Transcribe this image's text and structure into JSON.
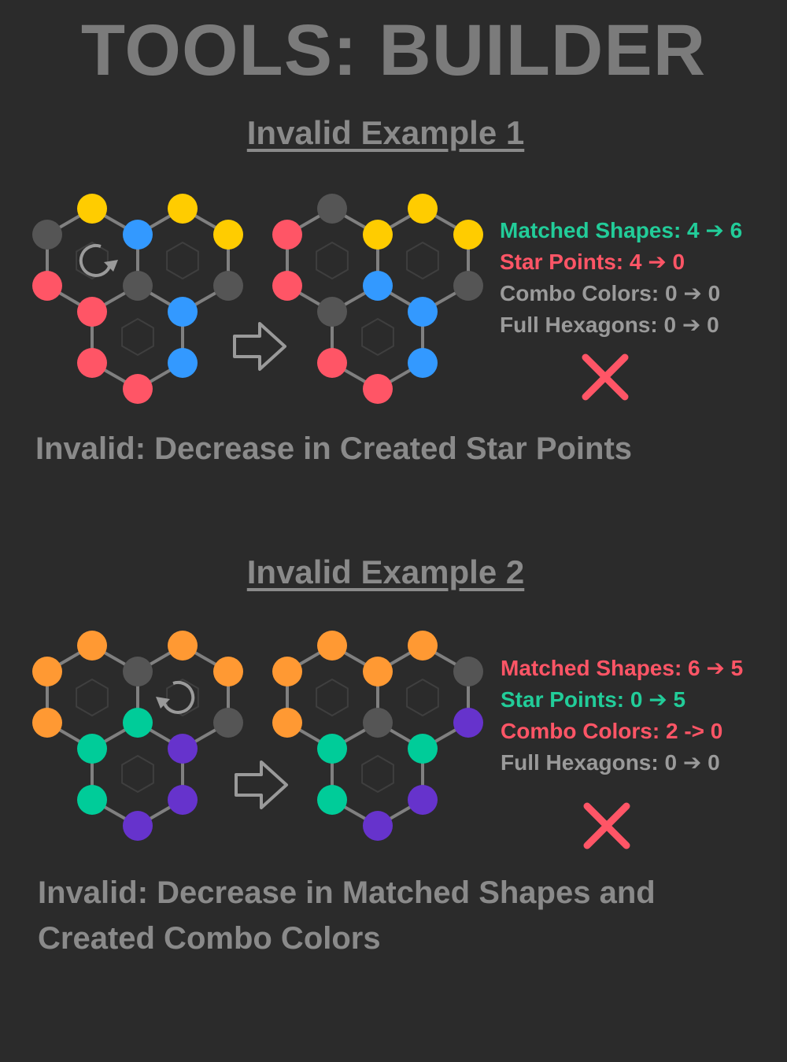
{
  "title": "TOOLS: BUILDER",
  "colors": {
    "background": "#2b2b2b",
    "gray_node": "#555555",
    "yellow": "#ffcc00",
    "blue": "#3399ff",
    "red": "#ff5566",
    "orange": "#ff9933",
    "teal": "#00cc99",
    "purple": "#6633cc",
    "stat_green": "#22cc99",
    "stat_red": "#ff5566",
    "stat_gray": "#9a9a9a"
  },
  "examples": [
    {
      "title": "Invalid Example 1",
      "rotation_icon": "rotate-clockwise-icon",
      "before": [
        "gray",
        "yellow",
        "blue",
        "yellow",
        "yellow",
        "red",
        "gray",
        "gray",
        "red",
        "blue",
        "red",
        "blue",
        "red"
      ],
      "after": [
        "red",
        "gray",
        "yellow",
        "yellow",
        "yellow",
        "red",
        "blue",
        "gray",
        "gray",
        "blue",
        "red",
        "blue",
        "red"
      ],
      "stats": [
        {
          "label": "Matched Shapes: 4",
          "to": "6",
          "color": "green"
        },
        {
          "label": "Star Points: 4",
          "to": "0",
          "color": "red"
        },
        {
          "label": "Combo Colors: 0",
          "to": "0",
          "color": "gray"
        },
        {
          "label": "Full Hexagons: 0",
          "to": "0",
          "color": "gray"
        }
      ],
      "verdict": "Invalid: Decrease in Created Star Points"
    },
    {
      "title": "Invalid Example 2",
      "rotation_icon": "rotate-counterclockwise-icon",
      "before": [
        "orange",
        "orange",
        "gray",
        "orange",
        "orange",
        "orange",
        "teal",
        "gray",
        "teal",
        "purple",
        "teal",
        "purple",
        "purple"
      ],
      "after": [
        "orange",
        "orange",
        "orange",
        "orange",
        "gray",
        "orange",
        "gray",
        "purple",
        "teal",
        "teal",
        "teal",
        "purple",
        "purple"
      ],
      "stats": [
        {
          "label": "Matched Shapes: 6",
          "to": "5",
          "color": "red",
          "arrow": "glyph"
        },
        {
          "label": "Star Points: 0",
          "to": "5",
          "color": "green",
          "arrow": "glyph"
        },
        {
          "label": "Combo Colors: 2 -> 0",
          "to": "",
          "color": "red",
          "arrow": "none"
        },
        {
          "label": "Full Hexagons: 0",
          "to": "0",
          "color": "gray",
          "arrow": "glyph"
        }
      ],
      "verdict_lines": [
        "Invalid: Decrease in Matched Shapes and",
        "Created Combo Colors"
      ]
    }
  ]
}
